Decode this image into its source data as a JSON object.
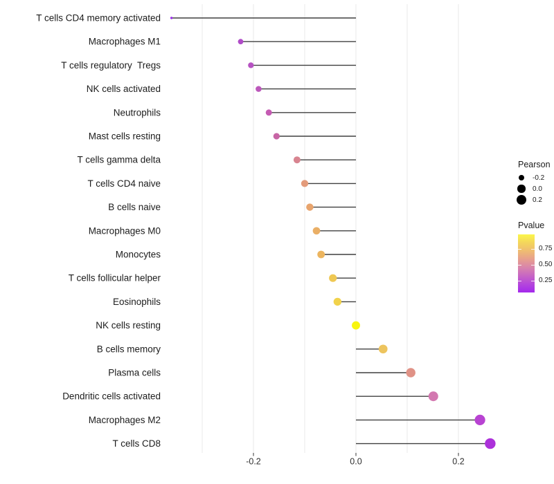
{
  "chart_data": {
    "type": "scatter",
    "subtype": "lollipop",
    "orientation": "horizontal",
    "title": "",
    "xlabel": "",
    "ylabel": "",
    "xlim": [
      -0.375,
      0.31
    ],
    "grid": true,
    "baseline_x": 0.0,
    "x_gridlines": [
      -0.3,
      -0.2,
      -0.1,
      0.0,
      0.1,
      0.2
    ],
    "x_major_ticks": [
      -0.2,
      0.0,
      0.2
    ],
    "x_tick_labels": [
      "-0.2",
      "0.0",
      "0.2"
    ],
    "points": [
      {
        "label": "T cells CD4 memory activated",
        "pearson": -0.36,
        "pvalue": 0.1,
        "color": "#9A30E8"
      },
      {
        "label": "Macrophages M1",
        "pearson": -0.225,
        "pvalue": 0.25,
        "color": "#B04CC8"
      },
      {
        "label": "T cells regulatory  Tregs",
        "pearson": -0.205,
        "pvalue": 0.26,
        "color": "#B652C2"
      },
      {
        "label": "NK cells activated",
        "pearson": -0.19,
        "pvalue": 0.28,
        "color": "#BC58BB"
      },
      {
        "label": "Neutrophils",
        "pearson": -0.17,
        "pvalue": 0.33,
        "color": "#C55BB3"
      },
      {
        "label": "Mast cells resting",
        "pearson": -0.155,
        "pvalue": 0.36,
        "color": "#C765A5"
      },
      {
        "label": "T cells gamma delta",
        "pearson": -0.115,
        "pvalue": 0.47,
        "color": "#D88490"
      },
      {
        "label": "T cells CD4 naive",
        "pearson": -0.1,
        "pvalue": 0.55,
        "color": "#E39B7B"
      },
      {
        "label": "B cells naive",
        "pearson": -0.09,
        "pvalue": 0.58,
        "color": "#E8A46D"
      },
      {
        "label": "Macrophages M0",
        "pearson": -0.077,
        "pvalue": 0.62,
        "color": "#EAAF66"
      },
      {
        "label": "Monocytes",
        "pearson": -0.068,
        "pvalue": 0.64,
        "color": "#ECB55F"
      },
      {
        "label": "T cells follicular helper",
        "pearson": -0.045,
        "pvalue": 0.7,
        "color": "#EFC853"
      },
      {
        "label": "Eosinophils",
        "pearson": -0.036,
        "pvalue": 0.74,
        "color": "#F1D24B"
      },
      {
        "label": "NK cells resting",
        "pearson": 0.0,
        "pvalue": 0.97,
        "color": "#F8F50E"
      },
      {
        "label": "B cells memory",
        "pearson": 0.053,
        "pvalue": 0.72,
        "color": "#EDC45E"
      },
      {
        "label": "Plasma cells",
        "pearson": 0.107,
        "pvalue": 0.56,
        "color": "#E09286"
      },
      {
        "label": "Dendritic cells activated",
        "pearson": 0.151,
        "pvalue": 0.42,
        "color": "#D378B0"
      },
      {
        "label": "Macrophages M2",
        "pearson": 0.242,
        "pvalue": 0.22,
        "color": "#B843D2"
      },
      {
        "label": "T cells CD8",
        "pearson": 0.262,
        "pvalue": 0.18,
        "color": "#AC31DA"
      }
    ],
    "legend": {
      "size": {
        "title": "Pearson",
        "dot_color": "#000000",
        "entries": [
          {
            "label": "-0.2",
            "value": -0.2
          },
          {
            "label": "0.0",
            "value": 0.0
          },
          {
            "label": "0.2",
            "value": 0.2
          }
        ]
      },
      "color": {
        "title": "Pvalue",
        "domain": [
          0.065,
          0.98
        ],
        "tick_values": [
          0.75,
          0.5,
          0.25
        ],
        "tick_labels": [
          "0.75",
          "0.50",
          "0.25"
        ],
        "gradient_stops": [
          "#FBF64A",
          "#F4D55C",
          "#EFBC72",
          "#E79F8E",
          "#D884AC",
          "#C765C4",
          "#B446DC",
          "#A428EC"
        ]
      }
    },
    "style": {
      "stem_color": "#3F3F3F",
      "grid_color": "#E9E9E9",
      "tick_color": "#333333",
      "label_color": "#1C1C1C",
      "axis_text_color": "#303030",
      "background": "#FFFFFF"
    }
  }
}
